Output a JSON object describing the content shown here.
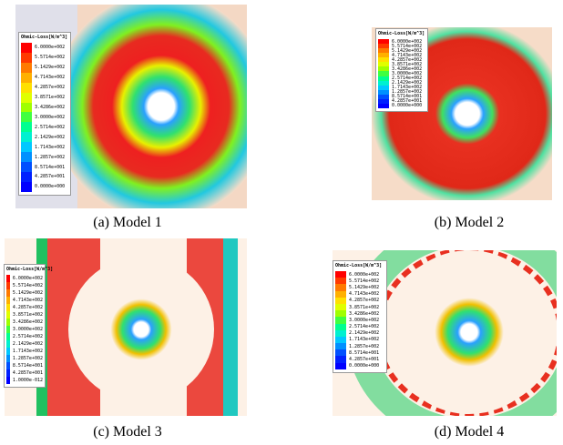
{
  "panels": [
    {
      "legend": {
        "title": "Ohmic-Loss[W/m^3]",
        "labels": [
          "6.0000e+002",
          "5.5714e+002",
          "5.1429e+002",
          "4.7143e+002",
          "4.2857e+002",
          "3.8571e+002",
          "3.4286e+002",
          "3.0000e+002",
          "2.5714e+002",
          "2.1429e+002",
          "1.7143e+002",
          "1.2857e+002",
          "8.5714e+001",
          "4.2857e+001",
          "0.0000e+000"
        ]
      },
      "caption": "(a) Model 1"
    },
    {
      "legend": {
        "title": "Ohmic-Loss[W/m^3]",
        "labels": [
          "6.0000e+002",
          "5.5714e+002",
          "5.1429e+002",
          "4.7143e+002",
          "4.2857e+002",
          "3.8571e+002",
          "3.4286e+002",
          "3.0000e+002",
          "2.5714e+002",
          "2.1429e+002",
          "1.7143e+002",
          "1.2857e+002",
          "8.5714e+001",
          "4.2857e+001",
          "0.0000e+000"
        ]
      },
      "caption": "(b) Model 2"
    },
    {
      "legend": {
        "title": "Ohmic-Loss[W/m^3]",
        "labels": [
          "6.0000e+002",
          "5.5714e+002",
          "5.1429e+002",
          "4.7143e+002",
          "4.2857e+002",
          "3.8571e+002",
          "3.4286e+002",
          "3.0000e+002",
          "2.5714e+002",
          "2.1429e+002",
          "1.7143e+002",
          "1.2857e+002",
          "8.5714e+001",
          "4.2857e+001",
          "1.0000e-012"
        ]
      },
      "caption": "(c) Model 3"
    },
    {
      "legend": {
        "title": "Ohmic-Loss[W/m^3]",
        "labels": [
          "6.0000e+002",
          "5.5714e+002",
          "5.1429e+002",
          "4.7143e+002",
          "4.2857e+002",
          "3.8571e+002",
          "3.4286e+002",
          "3.0000e+002",
          "2.5714e+002",
          "2.1429e+002",
          "1.7143e+002",
          "1.2857e+002",
          "8.5714e+001",
          "4.2857e+001",
          "0.0000e+000"
        ]
      },
      "caption": "(d) Model 4"
    }
  ]
}
